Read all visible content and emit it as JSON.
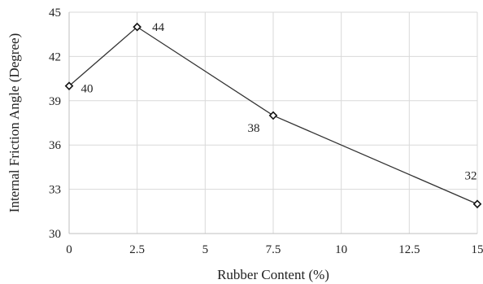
{
  "chart_data": {
    "type": "line",
    "xlabel": "Rubber Content (%)",
    "ylabel": "Internal Friction Angle (Degree)",
    "x": [
      0,
      2.5,
      7.5,
      15
    ],
    "series": [
      {
        "values": [
          40,
          44,
          38,
          32
        ]
      }
    ],
    "data_labels": [
      "40",
      "44",
      "38",
      "32"
    ],
    "xlim": [
      0,
      15
    ],
    "ylim": [
      30,
      45
    ],
    "xticks": [
      "0",
      "2.5",
      "5",
      "7.5",
      "10",
      "12.5",
      "15"
    ],
    "yticks": [
      "30",
      "33",
      "36",
      "39",
      "42",
      "45"
    ],
    "grid": true,
    "legend": "none",
    "colors": {
      "line": "#333333",
      "grid": "#d9d9d9",
      "marker_fill": "#ffffff"
    }
  }
}
